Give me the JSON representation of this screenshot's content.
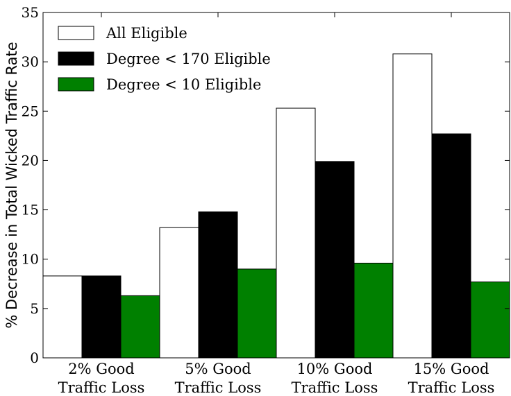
{
  "chart_data": {
    "type": "bar",
    "categories": [
      [
        "2% Good",
        "Traffic Loss"
      ],
      [
        "5% Good",
        "Traffic Loss"
      ],
      [
        "10% Good",
        "Traffic Loss"
      ],
      [
        "15% Good",
        "Traffic Loss"
      ]
    ],
    "series": [
      {
        "name": "All Eligible",
        "color": "#ffffff",
        "values": [
          8.3,
          13.2,
          25.3,
          30.8
        ]
      },
      {
        "name": "Degree < 170 Eligible",
        "color": "#000000",
        "values": [
          8.3,
          14.8,
          19.9,
          22.7
        ]
      },
      {
        "name": "Degree < 10 Eligible",
        "color": "#008000",
        "values": [
          6.3,
          9.0,
          9.6,
          7.7
        ]
      }
    ],
    "title": "",
    "xlabel": "",
    "ylabel": "% Decrease in Total Wicked Traffic Rate",
    "ylim": [
      0,
      35
    ],
    "yticks": [
      0,
      5,
      10,
      15,
      20,
      25,
      30,
      35
    ],
    "grid": false,
    "legend_position": "top-left"
  }
}
